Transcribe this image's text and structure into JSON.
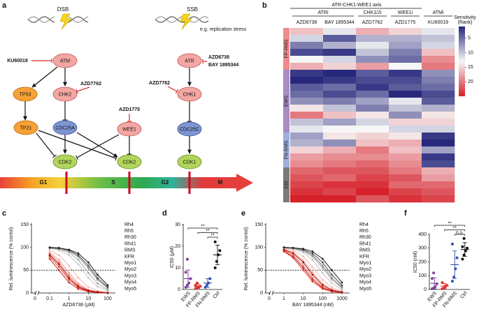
{
  "diagram": {
    "letter": "a",
    "dsb": "DSB",
    "ssb": "SSB",
    "stress_note": "e.g. replication stress",
    "nodes": [
      "ATM",
      "ATR",
      "CHK2",
      "CHK1",
      "TP53",
      "TP21",
      "CDC25A",
      "WEE1",
      "CDC25C",
      "CDK2",
      "CDK2",
      "CDK1"
    ],
    "inhibitors": [
      "KU60019",
      "AZD7762",
      "AZD1775",
      "AZD6738",
      "BAY 1895344",
      "AZD7762"
    ],
    "phases": [
      "G1",
      "S",
      "G2",
      "M"
    ]
  },
  "chart_data": [
    {
      "type": "heatmap",
      "letter": "b",
      "axis_title": "ATR-CHK1-WEE1 axis",
      "drug_classes": [
        {
          "name": "ATRi",
          "drugs": [
            "AZD6738",
            "BAY 1895344"
          ]
        },
        {
          "name": "CHK1/2i",
          "drugs": [
            "AZD7762"
          ]
        },
        {
          "name": "WEE1i",
          "drugs": [
            "AZD1775"
          ]
        },
        {
          "name": "ATMi",
          "drugs": [
            "KU60019"
          ]
        }
      ],
      "groups": [
        {
          "name": "FP-RMS",
          "color": "#f08c8c",
          "rows": [
            [
              16,
              12,
              17,
              15,
              12
            ],
            [
              11,
              4,
              9,
              9,
              10
            ],
            [
              6,
              9,
              12,
              8,
              11
            ],
            [
              3,
              2,
              10,
              6,
              16
            ],
            [
              13,
              11,
              7,
              5,
              19
            ],
            [
              17,
              15,
              18,
              13,
              20
            ]
          ]
        },
        {
          "name": "EWS",
          "color": "#a98cc4",
          "rows": [
            [
              2,
              1,
              4,
              2,
              7
            ],
            [
              1,
              2,
              3,
              3,
              6
            ],
            [
              4,
              5,
              2,
              4,
              5
            ],
            [
              5,
              3,
              5,
              1,
              3
            ],
            [
              7,
              6,
              8,
              12,
              4
            ],
            [
              14,
              10,
              6,
              10,
              9
            ],
            [
              20,
              16,
              14,
              7,
              14
            ],
            [
              10,
              8,
              11,
              15,
              15
            ],
            [
              12,
              13,
              13,
              11,
              11
            ]
          ]
        },
        {
          "name": "FN-RMS",
          "color": "#9fb0de",
          "rows": [
            [
              8,
              14,
              15,
              14,
              2
            ],
            [
              9,
              7,
              16,
              17,
              1
            ],
            [
              15,
              17,
              20,
              16,
              8
            ],
            [
              18,
              19,
              19,
              18,
              2
            ],
            [
              19,
              20,
              21,
              19,
              3
            ]
          ]
        },
        {
          "name": "Ctrl",
          "color": "#7a7a7a",
          "rows": [
            [
              21,
              22,
              22,
              20,
              17
            ],
            [
              22,
              21,
              23,
              22,
              18
            ],
            [
              23,
              24,
              24,
              21,
              21
            ],
            [
              24,
              23,
              25,
              23,
              22
            ],
            [
              25,
              25,
              22,
              24,
              23
            ]
          ]
        }
      ],
      "legend_title": [
        "Sensitivity",
        "(Rank)"
      ],
      "clim": [
        1,
        25
      ],
      "cticks": [
        5,
        10,
        15,
        20
      ],
      "colors": [
        "#27287c",
        "#f7f7f7",
        "#d6202a"
      ]
    },
    {
      "type": "line",
      "letter": "c",
      "log_x": true,
      "x": [
        0.1,
        0.3,
        1,
        3,
        10,
        30,
        100
      ],
      "xlim": [
        0.04,
        250
      ],
      "xticks": [
        0.1,
        1,
        10,
        100
      ],
      "zero_label": "0",
      "ylim": [
        0,
        150
      ],
      "yticks": [
        0,
        50,
        100,
        150
      ],
      "hline": 50,
      "xlabel": "AZD6738 (µM)",
      "ylabel": "Rel. luminescence (% contol)",
      "series": [
        {
          "name": "Rh4",
          "color": "#f4b6b0",
          "values": [
            94,
            83,
            60,
            33,
            13,
            5,
            1
          ]
        },
        {
          "name": "Rh5",
          "color": "#f09a90",
          "values": [
            89,
            73,
            44,
            21,
            7,
            3,
            1
          ]
        },
        {
          "name": "Rh30",
          "color": "#e87060",
          "values": [
            86,
            67,
            38,
            17,
            6,
            2,
            1
          ]
        },
        {
          "name": "Rh41",
          "color": "#e04838",
          "values": [
            80,
            57,
            29,
            12,
            4,
            1,
            0
          ]
        },
        {
          "name": "RMS",
          "color": "#d02020",
          "values": [
            75,
            50,
            23,
            9,
            3,
            1,
            0
          ]
        },
        {
          "name": "KFR",
          "color": "#a80c0c",
          "values": [
            83,
            63,
            33,
            14,
            5,
            2,
            0
          ]
        },
        {
          "name": "Myo1",
          "color": "#c4c4c4",
          "values": [
            98,
            94,
            83,
            63,
            33,
            14,
            5
          ]
        },
        {
          "name": "Myo2",
          "color": "#a4a4a4",
          "values": [
            99,
            96,
            89,
            73,
            44,
            21,
            7
          ]
        },
        {
          "name": "Myo3",
          "color": "#828282",
          "values": [
            99,
            98,
            92,
            80,
            55,
            29,
            11
          ]
        },
        {
          "name": "Myo4",
          "color": "#505050",
          "values": [
            99,
            98,
            94,
            83,
            60,
            33,
            13
          ]
        },
        {
          "name": "Myo5",
          "color": "#1e1e1e",
          "values": [
            100,
            99,
            95,
            87,
            67,
            40,
            17
          ]
        }
      ]
    },
    {
      "type": "dot",
      "letter": "d",
      "ylabel": "IC50 (µM)",
      "ylim": [
        0,
        30
      ],
      "yticks": [
        0,
        10,
        20,
        30
      ],
      "groups": [
        {
          "name": "EWS",
          "color": "#7b3f9e",
          "values": [
            1,
            2,
            3,
            5,
            8,
            14
          ],
          "mean": 5,
          "sd": 4
        },
        {
          "name": "FP-RMS",
          "color": "#e03030",
          "values": [
            0.5,
            0.8,
            1,
            1.5,
            2,
            3
          ],
          "mean": 1.5,
          "sd": 1
        },
        {
          "name": "FN-RMS",
          "color": "#3050b0",
          "values": [
            1,
            2,
            3,
            5
          ],
          "mean": 3,
          "sd": 2
        },
        {
          "name": "Ctrl",
          "color": "#111111",
          "values": [
            10,
            13,
            16,
            18,
            22
          ],
          "mean": 16,
          "sd": 4.5
        }
      ],
      "comparisons": [
        {
          "label": "**"
        },
        {
          "label": "**"
        },
        {
          "label": "**"
        }
      ]
    },
    {
      "type": "line",
      "letter": "e",
      "log_x": true,
      "x": [
        1,
        3,
        10,
        30,
        100,
        300,
        1000
      ],
      "xlim": [
        0.4,
        2500
      ],
      "xticks": [
        1,
        10,
        100,
        1000
      ],
      "zero_label": "0",
      "ylim": [
        0,
        150
      ],
      "yticks": [
        0,
        50,
        100,
        150
      ],
      "hline": 50,
      "xlabel": "BAY 1895344 (nM)",
      "ylabel": "Rel. luminescence (% contol)",
      "series": [
        {
          "name": "Rh4",
          "color": "#f4b6b0",
          "values": [
            98,
            93,
            80,
            57,
            29,
            12,
            4
          ]
        },
        {
          "name": "Rh5",
          "color": "#f09a90",
          "values": [
            96,
            89,
            71,
            45,
            20,
            8,
            2
          ]
        },
        {
          "name": "Rh30",
          "color": "#e87060",
          "values": [
            94,
            83,
            60,
            33,
            13,
            5,
            1
          ]
        },
        {
          "name": "Rh41",
          "color": "#e04838",
          "values": [
            91,
            77,
            50,
            25,
            9,
            3,
            1
          ]
        },
        {
          "name": "RMS",
          "color": "#d02020",
          "values": [
            92,
            80,
            55,
            29,
            11,
            4,
            1
          ]
        },
        {
          "name": "KFR",
          "color": "#a80c0c",
          "values": [
            95,
            87,
            67,
            40,
            17,
            6,
            2
          ]
        },
        {
          "name": "Myo1",
          "color": "#c4c4c4",
          "values": [
            99,
            96,
            89,
            73,
            44,
            21,
            7
          ]
        },
        {
          "name": "Myo2",
          "color": "#a4a4a4",
          "values": [
            99,
            98,
            92,
            80,
            55,
            29,
            11
          ]
        },
        {
          "name": "Myo3",
          "color": "#828282",
          "values": [
            99,
            98,
            94,
            83,
            60,
            33,
            13
          ]
        },
        {
          "name": "Myo4",
          "color": "#505050",
          "values": [
            100,
            99,
            95,
            87,
            67,
            40,
            17
          ]
        },
        {
          "name": "Myo5",
          "color": "#1e1e1e",
          "values": [
            100,
            99,
            97,
            91,
            75,
            50,
            23
          ]
        }
      ]
    },
    {
      "type": "dot",
      "letter": "f",
      "ylabel": "IC50 (nM)",
      "ylim": [
        0,
        400
      ],
      "yticks": [
        0,
        100,
        200,
        300,
        400
      ],
      "groups": [
        {
          "name": "EWS",
          "color": "#7b3f9e",
          "values": [
            5,
            10,
            20,
            40,
            80,
            120
          ],
          "mean": 45,
          "sd": 40
        },
        {
          "name": "FP-RMS",
          "color": "#e03030",
          "values": [
            5,
            10,
            20,
            30,
            50
          ],
          "mean": 25,
          "sd": 18
        },
        {
          "name": "FN-RMS",
          "color": "#3050b0",
          "values": [
            60,
            90,
            150,
            230,
            330
          ],
          "mean": 180,
          "sd": 100
        },
        {
          "name": "Ctrl",
          "color": "#111111",
          "values": [
            220,
            250,
            280,
            300,
            310,
            370
          ],
          "mean": 290,
          "sd": 50
        }
      ],
      "comparisons": [
        {
          "label": "**"
        },
        {
          "label": "**"
        },
        {
          "label": "n.s."
        }
      ]
    }
  ]
}
